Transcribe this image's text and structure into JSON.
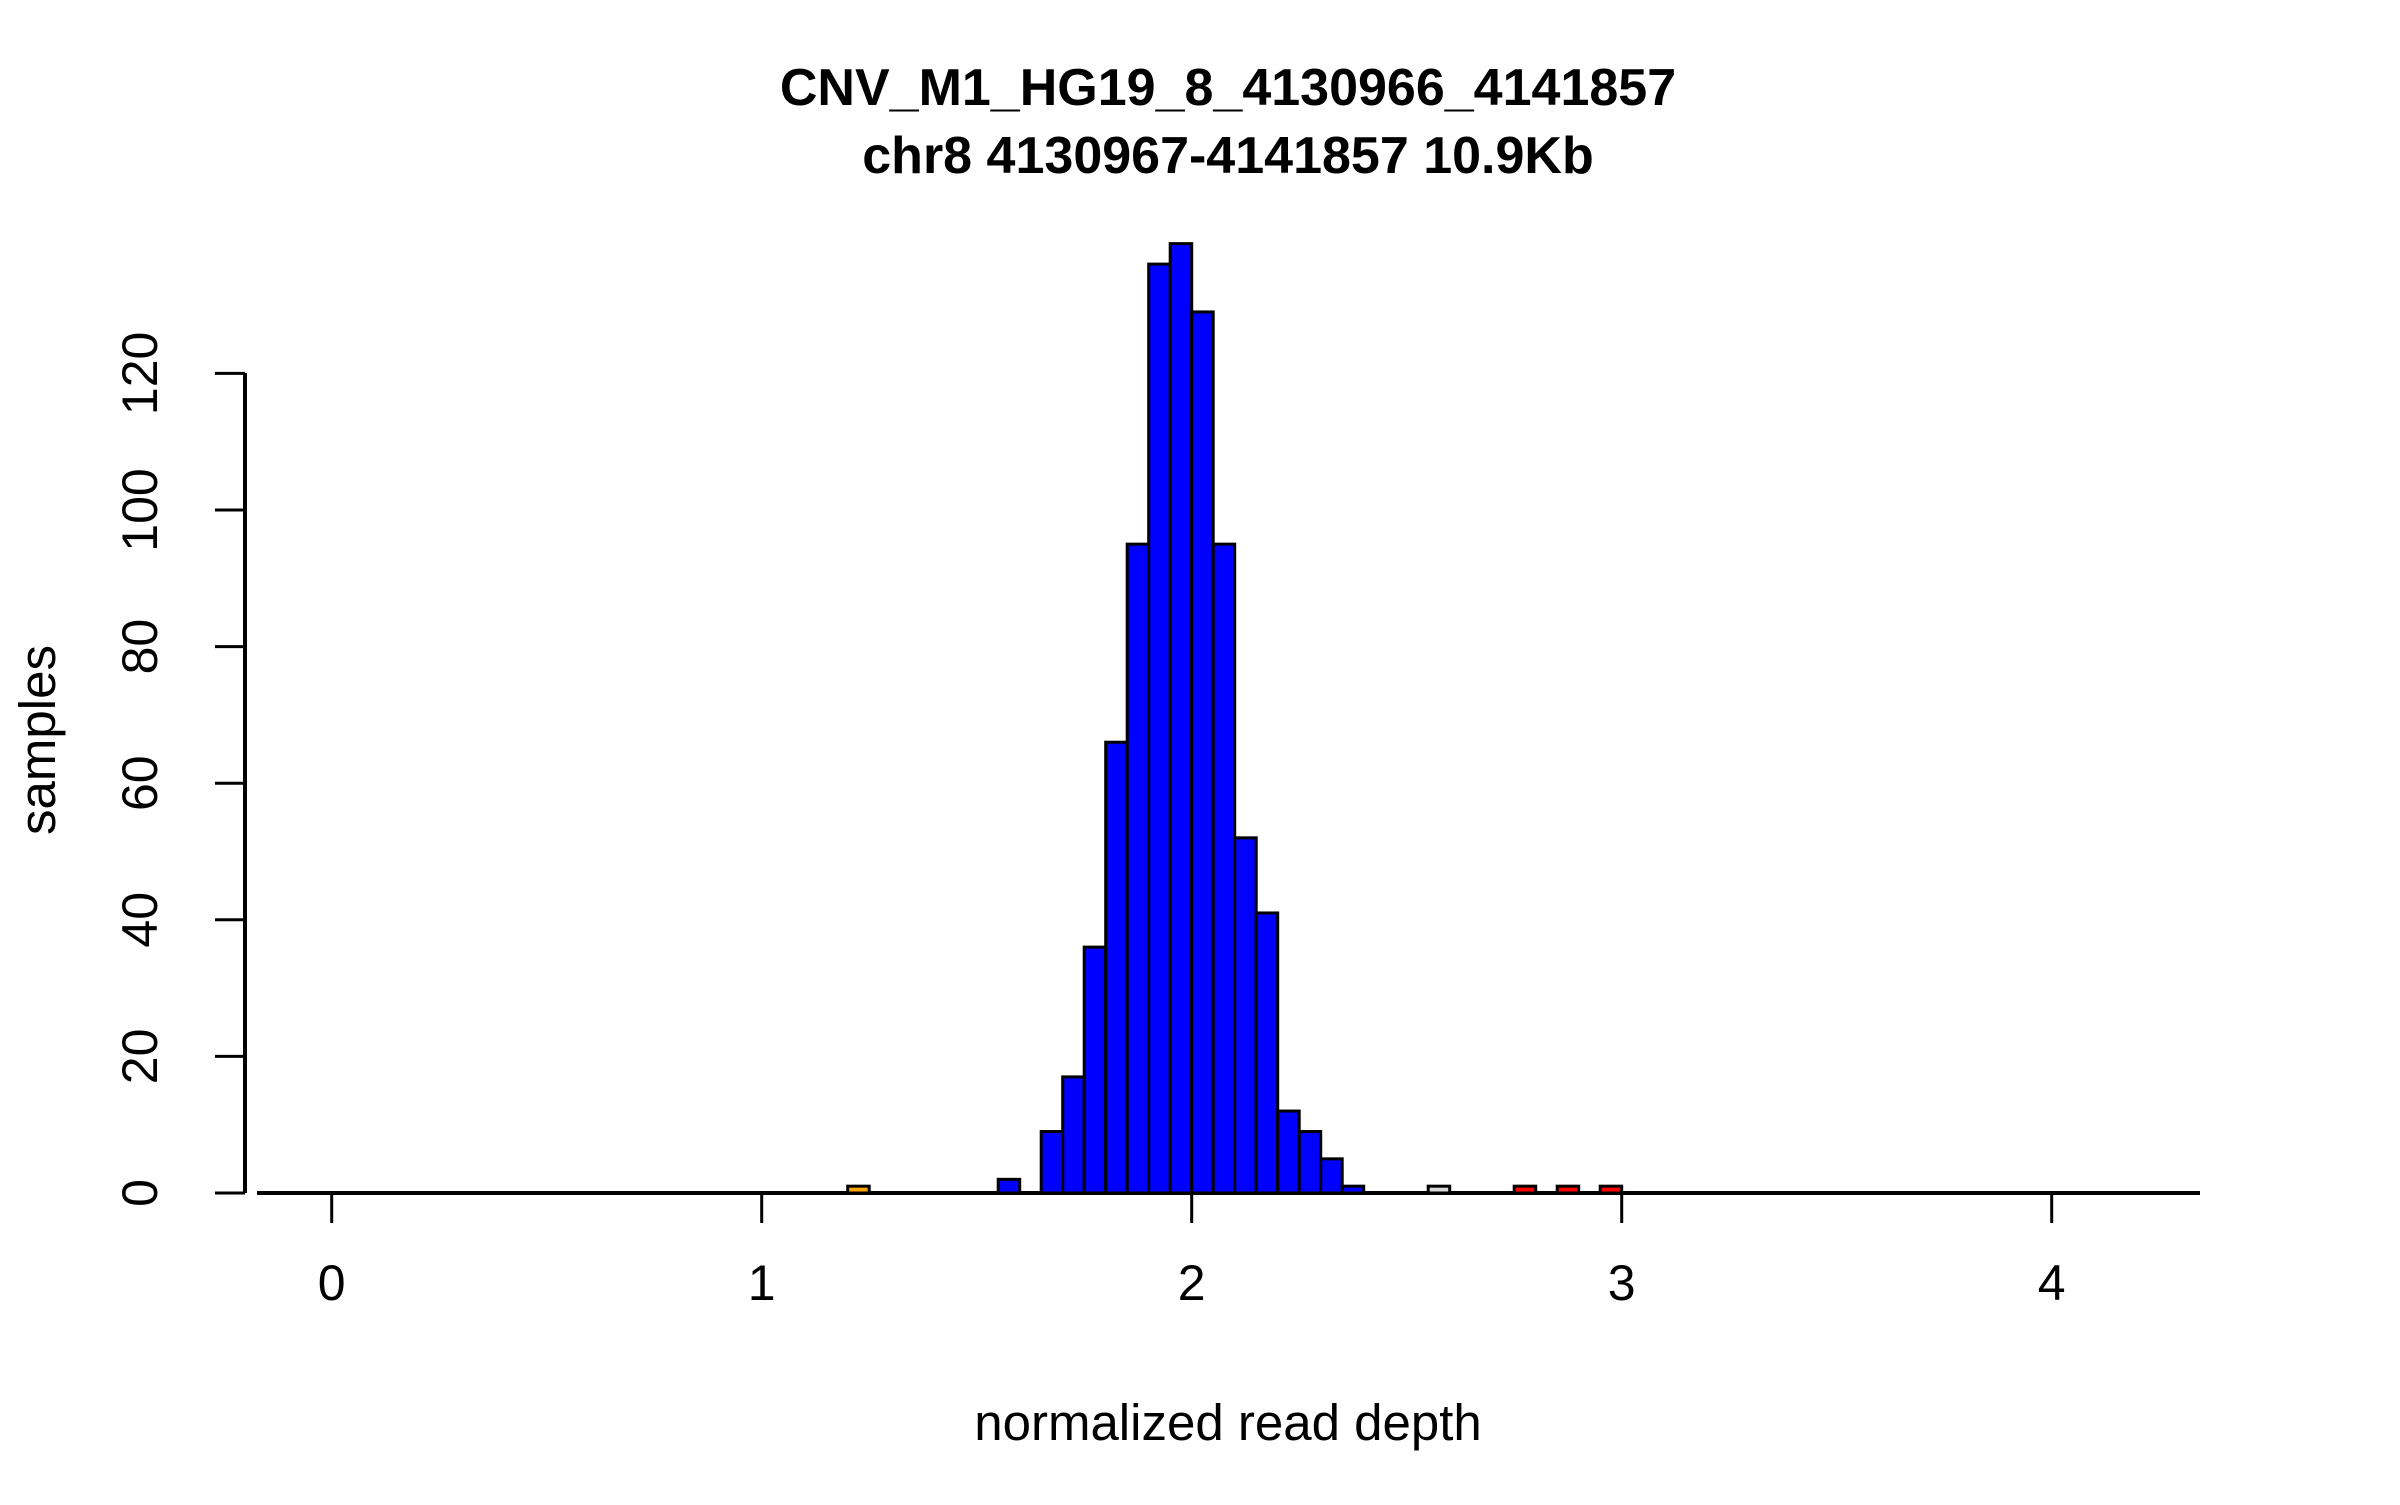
{
  "page": {
    "background_color": "#FFFFFF",
    "foreground_color": "#000000"
  },
  "chart_data": {
    "type": "bar",
    "subtype": "histogram",
    "title": "CNV_M1_HG19_8_4130966_4141857",
    "subtitle": "chr8 4130967-4141857 10.9Kb",
    "xlabel": "normalized read depth",
    "ylabel": "samples",
    "xlim": [
      -0.17,
      4.35
    ],
    "ylim": [
      0,
      139
    ],
    "xticks": [
      0,
      1,
      2,
      3,
      4
    ],
    "yticks": [
      0,
      20,
      40,
      60,
      80,
      100,
      120
    ],
    "grid": false,
    "legend": false,
    "bin_width": 0.05,
    "colors": {
      "main_fill": "#0000FF",
      "outlier_low_fill": "#FFA500",
      "outlier_mid_fill": "#D9D9D9",
      "outlier_high_fill": "#FF0000",
      "border": "#000000"
    },
    "bars": [
      {
        "x": 1.2,
        "count": 1,
        "color": "#FFA500"
      },
      {
        "x": 1.55,
        "count": 2,
        "color": "#0000FF"
      },
      {
        "x": 1.65,
        "count": 9,
        "color": "#0000FF"
      },
      {
        "x": 1.7,
        "count": 17,
        "color": "#0000FF"
      },
      {
        "x": 1.75,
        "count": 36,
        "color": "#0000FF"
      },
      {
        "x": 1.8,
        "count": 66,
        "color": "#0000FF"
      },
      {
        "x": 1.85,
        "count": 95,
        "color": "#0000FF"
      },
      {
        "x": 1.9,
        "count": 136,
        "color": "#0000FF"
      },
      {
        "x": 1.95,
        "count": 139,
        "color": "#0000FF"
      },
      {
        "x": 2.0,
        "count": 129,
        "color": "#0000FF"
      },
      {
        "x": 2.05,
        "count": 95,
        "color": "#0000FF"
      },
      {
        "x": 2.1,
        "count": 52,
        "color": "#0000FF"
      },
      {
        "x": 2.15,
        "count": 41,
        "color": "#0000FF"
      },
      {
        "x": 2.2,
        "count": 12,
        "color": "#0000FF"
      },
      {
        "x": 2.25,
        "count": 9,
        "color": "#0000FF"
      },
      {
        "x": 2.3,
        "count": 5,
        "color": "#0000FF"
      },
      {
        "x": 2.35,
        "count": 1,
        "color": "#0000FF"
      },
      {
        "x": 2.55,
        "count": 1,
        "color": "#D9D9D9"
      },
      {
        "x": 2.75,
        "count": 1,
        "color": "#FF0000"
      },
      {
        "x": 2.85,
        "count": 1,
        "color": "#FF0000"
      },
      {
        "x": 2.95,
        "count": 1,
        "color": "#FF0000"
      }
    ]
  }
}
